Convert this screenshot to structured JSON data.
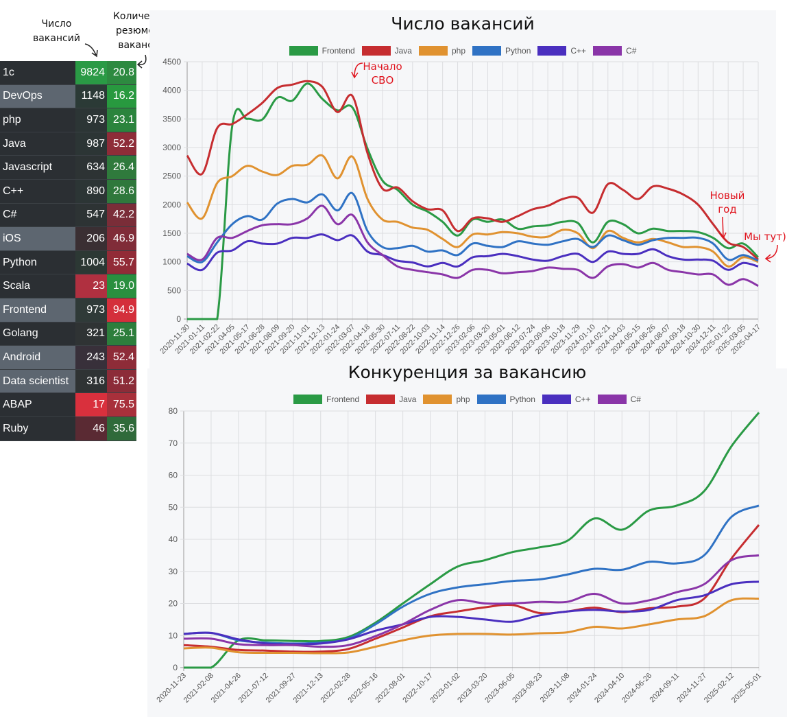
{
  "table": {
    "header_vacancies": "Число вакансий",
    "header_resumes": "Количество резюме на вакансию",
    "rows": [
      {
        "name": "1c",
        "vacancies": "9824",
        "resumes": "20.8",
        "name_bg": "#2b2f33",
        "vac_bg": "#2a9a45",
        "res_bg": "#2d8a40"
      },
      {
        "name": "DevOps",
        "vacancies": "1148",
        "resumes": "16.2",
        "name_bg": "#5d6670",
        "vac_bg": "#2b3a36",
        "res_bg": "#28993f"
      },
      {
        "name": "php",
        "vacancies": "973",
        "resumes": "23.1",
        "name_bg": "#2b2f33",
        "vac_bg": "#2c3535",
        "res_bg": "#2b843d"
      },
      {
        "name": "Java",
        "vacancies": "987",
        "resumes": "52.2",
        "name_bg": "#2b2f33",
        "vac_bg": "#2c3535",
        "res_bg": "#8e2c38"
      },
      {
        "name": "Javascript",
        "vacancies": "634",
        "resumes": "26.4",
        "name_bg": "#2b2f33",
        "vac_bg": "#2d3334",
        "res_bg": "#2f7a3c"
      },
      {
        "name": "C++",
        "vacancies": "890",
        "resumes": "28.6",
        "name_bg": "#2b2f33",
        "vac_bg": "#2c3535",
        "res_bg": "#2f783c"
      },
      {
        "name": "C#",
        "vacancies": "547",
        "resumes": "42.2",
        "name_bg": "#2b2f33",
        "vac_bg": "#2d3334",
        "res_bg": "#7a2d38"
      },
      {
        "name": "iOS",
        "vacancies": "206",
        "resumes": "46.9",
        "name_bg": "#5d6670",
        "vac_bg": "#3a2f33",
        "res_bg": "#802c38"
      },
      {
        "name": "Python",
        "vacancies": "1004",
        "resumes": "55.7",
        "name_bg": "#2b2f33",
        "vac_bg": "#2c3834",
        "res_bg": "#922b37"
      },
      {
        "name": "Scala",
        "vacancies": "23",
        "resumes": "19.0",
        "name_bg": "#2b2f33",
        "vac_bg": "#b03040",
        "res_bg": "#2a8f3f"
      },
      {
        "name": "Frontend",
        "vacancies": "973",
        "resumes": "94.9",
        "name_bg": "#5d6670",
        "vac_bg": "#2f3a38",
        "res_bg": "#d42f3b"
      },
      {
        "name": "Golang",
        "vacancies": "321",
        "resumes": "25.1",
        "name_bg": "#2b2f33",
        "vac_bg": "#2f3334",
        "res_bg": "#2d7e3c"
      },
      {
        "name": "Android",
        "vacancies": "243",
        "resumes": "52.4",
        "name_bg": "#5d6670",
        "vac_bg": "#38303a",
        "res_bg": "#8e2c38"
      },
      {
        "name": "Data scientist",
        "vacancies": "316",
        "resumes": "51.2",
        "name_bg": "#5d6670",
        "vac_bg": "#2f3334",
        "res_bg": "#8c2c38"
      },
      {
        "name": "ABAP",
        "vacancies": "17",
        "resumes": "75.5",
        "name_bg": "#2b2f33",
        "vac_bg": "#d9303d",
        "res_bg": "#a8303b"
      },
      {
        "name": "Ruby",
        "vacancies": "46",
        "resumes": "35.6",
        "name_bg": "#2b2f33",
        "vac_bg": "#5a2a33",
        "res_bg": "#2f6a3a"
      }
    ]
  },
  "chart_data": [
    {
      "type": "line",
      "title": "Число вакансий",
      "ylim": [
        0,
        4500
      ],
      "yticks": [
        0,
        500,
        1000,
        1500,
        2000,
        2500,
        3000,
        3500,
        4000,
        4500
      ],
      "grid": true,
      "legend": "top",
      "categories": [
        "2020-11-30",
        "2021-01-11",
        "2021-02-22",
        "2021-04-05",
        "2021-05-17",
        "2021-06-28",
        "2021-08-09",
        "2021-09-20",
        "2021-11-01",
        "2021-12-13",
        "2022-01-24",
        "2022-03-07",
        "2022-04-18",
        "2022-05-30",
        "2022-07-11",
        "2022-08-22",
        "2022-10-03",
        "2022-11-14",
        "2022-12-26",
        "2023-02-06",
        "2023-03-20",
        "2023-05-01",
        "2023-06-12",
        "2023-07-24",
        "2023-09-06",
        "2023-10-18",
        "2023-11-29",
        "2024-01-10",
        "2024-02-21",
        "2024-04-03",
        "2024-05-15",
        "2024-06-26",
        "2024-08-07",
        "2024-09-18",
        "2024-10-30",
        "2024-12-11",
        "2025-01-22",
        "2025-03-05",
        "2025-04-17"
      ],
      "series": [
        {
          "name": "Frontend",
          "color": "#2a9a45",
          "values": [
            0,
            0,
            0,
            3380,
            3500,
            3490,
            3870,
            3820,
            4120,
            3850,
            3650,
            3700,
            2980,
            2420,
            2260,
            2000,
            1880,
            1700,
            1460,
            1740,
            1700,
            1740,
            1580,
            1620,
            1640,
            1700,
            1680,
            1340,
            1700,
            1660,
            1500,
            1580,
            1540,
            1540,
            1520,
            1420,
            1240,
            1320,
            1080
          ]
        },
        {
          "name": "Java",
          "color": "#c62d30",
          "values": [
            2860,
            2540,
            3340,
            3410,
            3580,
            3780,
            4040,
            4100,
            4160,
            4060,
            3620,
            3900,
            2900,
            2280,
            2300,
            2060,
            1920,
            1900,
            1540,
            1760,
            1760,
            1700,
            1800,
            1920,
            1980,
            2100,
            2120,
            1860,
            2360,
            2260,
            2100,
            2320,
            2280,
            2180,
            2000,
            1660,
            1340,
            1260,
            1040
          ]
        },
        {
          "name": "php",
          "color": "#e09230",
          "values": [
            2040,
            1760,
            2380,
            2500,
            2680,
            2580,
            2520,
            2680,
            2700,
            2860,
            2460,
            2840,
            2100,
            1740,
            1700,
            1600,
            1560,
            1400,
            1260,
            1480,
            1480,
            1520,
            1500,
            1440,
            1440,
            1560,
            1500,
            1240,
            1540,
            1420,
            1340,
            1400,
            1340,
            1260,
            1260,
            1180,
            920,
            1080,
            1000
          ]
        },
        {
          "name": "Python",
          "color": "#2f72c4",
          "values": [
            1100,
            1000,
            1340,
            1660,
            1800,
            1740,
            2020,
            2100,
            2040,
            2180,
            1900,
            2200,
            1540,
            1260,
            1240,
            1280,
            1180,
            1200,
            1120,
            1320,
            1280,
            1260,
            1360,
            1320,
            1300,
            1360,
            1400,
            1260,
            1460,
            1380,
            1300,
            1380,
            1420,
            1420,
            1420,
            1320,
            1040,
            1120,
            1020
          ]
        },
        {
          "name": "C++",
          "color": "#4a2fbf",
          "values": [
            970,
            860,
            1160,
            1200,
            1360,
            1320,
            1320,
            1420,
            1420,
            1480,
            1380,
            1460,
            1180,
            1120,
            1020,
            990,
            920,
            980,
            920,
            1080,
            1100,
            1140,
            1100,
            1040,
            1020,
            1100,
            1140,
            1000,
            1180,
            1140,
            1140,
            1220,
            1100,
            1040,
            1040,
            1020,
            860,
            980,
            920
          ]
        },
        {
          "name": "C#",
          "color": "#8a35a8",
          "values": [
            1140,
            1040,
            1420,
            1420,
            1540,
            1640,
            1660,
            1660,
            1760,
            1980,
            1660,
            1820,
            1340,
            1120,
            920,
            860,
            820,
            780,
            720,
            860,
            860,
            800,
            820,
            840,
            900,
            880,
            860,
            720,
            920,
            960,
            900,
            980,
            860,
            820,
            780,
            780,
            600,
            700,
            580
          ]
        }
      ],
      "annotations": [
        {
          "text": "Начало СВО",
          "at": "2022-03-07"
        },
        {
          "text": "Новый год",
          "at": "2025-01-01"
        },
        {
          "text": "Мы тут)",
          "at": "2025-04-17"
        }
      ]
    },
    {
      "type": "line",
      "title": "Конкуренция за вакансию",
      "ylim": [
        0,
        80
      ],
      "yticks": [
        0,
        10,
        20,
        30,
        40,
        50,
        60,
        70,
        80
      ],
      "grid": true,
      "legend": "top",
      "categories": [
        "2020-11-23",
        "2021-02-08",
        "2021-04-26",
        "2021-07-12",
        "2021-09-27",
        "2021-12-13",
        "2022-02-28",
        "2022-05-16",
        "2022-08-01",
        "2022-10-17",
        "2023-01-02",
        "2023-03-20",
        "2023-06-05",
        "2023-08-23",
        "2023-11-08",
        "2024-01-24",
        "2024-04-10",
        "2024-06-26",
        "2024-09-11",
        "2024-11-27",
        "2025-02-12",
        "2025-05-01"
      ],
      "series": [
        {
          "name": "Frontend",
          "color": "#2a9a45",
          "values": [
            0,
            0,
            8.5,
            8.5,
            8.3,
            8.3,
            9.5,
            14,
            20,
            26,
            31.5,
            33.5,
            36,
            37.5,
            39.5,
            46.5,
            43,
            49,
            50.5,
            55,
            69,
            79.5
          ]
        },
        {
          "name": "Java",
          "color": "#c62d30",
          "values": [
            7,
            6.5,
            5.5,
            5.3,
            5,
            5,
            5.8,
            9,
            12.5,
            16,
            17.5,
            18.8,
            19.5,
            17,
            17.5,
            18.7,
            17.3,
            18.5,
            19,
            21.5,
            34,
            44.5
          ]
        },
        {
          "name": "php",
          "color": "#e09230",
          "values": [
            6,
            6.2,
            4.8,
            4.6,
            4.6,
            4.5,
            4.7,
            6.5,
            8.5,
            10,
            10.5,
            10.5,
            10.3,
            10.7,
            11,
            12.7,
            12.2,
            13.5,
            15,
            16,
            21,
            21.5
          ]
        },
        {
          "name": "Python",
          "color": "#2f72c4",
          "values": [
            10.5,
            10.8,
            8.5,
            7.8,
            7.5,
            7.8,
            9,
            13.5,
            19,
            23,
            25,
            26,
            27,
            27.5,
            29,
            30.8,
            30.5,
            33,
            32.5,
            35,
            47,
            50.5
          ]
        },
        {
          "name": "C++",
          "color": "#4a2fbf",
          "values": [
            10.5,
            10.8,
            8.8,
            7.5,
            7.3,
            7.5,
            8.8,
            11.5,
            13.5,
            15.8,
            15.8,
            15,
            14.3,
            16.3,
            17.5,
            18,
            17.5,
            18,
            21,
            22.5,
            26,
            26.8
          ]
        },
        {
          "name": "C#",
          "color": "#8a35a8",
          "values": [
            9,
            9,
            7.3,
            7,
            7,
            6.5,
            7,
            9.8,
            13.5,
            18,
            21,
            20,
            20,
            20.5,
            20.5,
            23,
            20,
            21,
            23.5,
            26,
            33.5,
            35
          ]
        }
      ]
    }
  ]
}
